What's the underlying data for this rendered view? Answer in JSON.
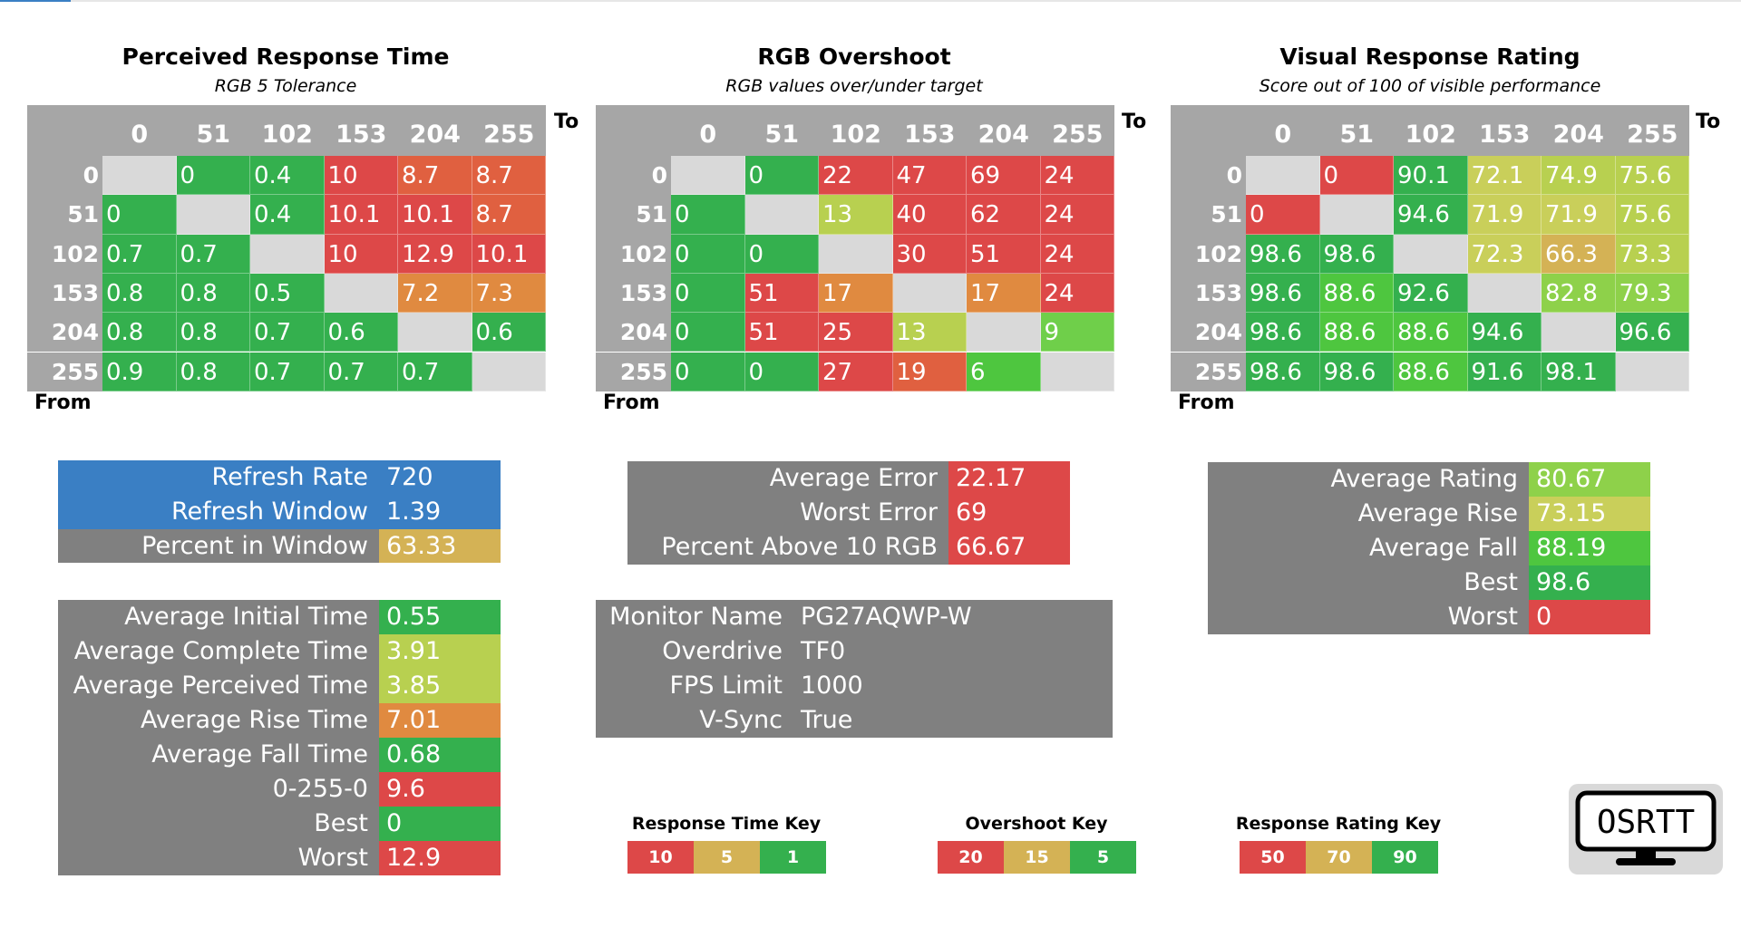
{
  "colors": {
    "header_gray": "#a6a6a6",
    "label_gray": "#808080",
    "blue_panel": "#3a7fc4",
    "empty_cell": "#d9d9d9",
    "green_dark": "#34b04e",
    "green_bright": "#4ec63f",
    "green_light": "#6fcf4a",
    "lime": "#8ed14a",
    "yellow_green": "#b8d050",
    "yellow": "#c9cf5a",
    "tan": "#d4b255",
    "orange": "#e08a40",
    "red_orange": "#e06040",
    "red": "#dd4848"
  },
  "chart_data": [
    {
      "type": "heatmap",
      "title": "Perceived Response Time",
      "subtitle": "RGB 5 Tolerance",
      "xlabel": "To",
      "ylabel": "From",
      "columns": [
        "0",
        "51",
        "102",
        "153",
        "204",
        "255"
      ],
      "rows": [
        "0",
        "51",
        "102",
        "153",
        "204",
        "255"
      ],
      "values": [
        [
          "",
          "0",
          "0.4",
          "10",
          "8.7",
          "8.7"
        ],
        [
          "0",
          "",
          "0.4",
          "10.1",
          "10.1",
          "8.7"
        ],
        [
          "0.7",
          "0.7",
          "",
          "10",
          "12.9",
          "10.1"
        ],
        [
          "0.8",
          "0.8",
          "0.5",
          "",
          "7.2",
          "7.3"
        ],
        [
          "0.8",
          "0.8",
          "0.7",
          "0.6",
          "",
          "0.6"
        ],
        [
          "0.9",
          "0.8",
          "0.7",
          "0.7",
          "0.7",
          ""
        ]
      ],
      "cell_colors": [
        [
          "empty",
          "green_dark",
          "green_dark",
          "red",
          "red_orange",
          "red_orange"
        ],
        [
          "green_dark",
          "empty",
          "green_dark",
          "red",
          "red",
          "red_orange"
        ],
        [
          "green_dark",
          "green_dark",
          "empty",
          "red",
          "red",
          "red"
        ],
        [
          "green_dark",
          "green_dark",
          "green_dark",
          "empty",
          "orange",
          "orange"
        ],
        [
          "green_dark",
          "green_dark",
          "green_dark",
          "green_dark",
          "empty",
          "green_dark"
        ],
        [
          "green_dark",
          "green_dark",
          "green_dark",
          "green_dark",
          "green_dark",
          "empty"
        ]
      ]
    },
    {
      "type": "heatmap",
      "title": "RGB Overshoot",
      "subtitle": "RGB values over/under target",
      "xlabel": "To",
      "ylabel": "From",
      "columns": [
        "0",
        "51",
        "102",
        "153",
        "204",
        "255"
      ],
      "rows": [
        "0",
        "51",
        "102",
        "153",
        "204",
        "255"
      ],
      "values": [
        [
          "",
          "0",
          "22",
          "47",
          "69",
          "24"
        ],
        [
          "0",
          "",
          "13",
          "40",
          "62",
          "24"
        ],
        [
          "0",
          "0",
          "",
          "30",
          "51",
          "24"
        ],
        [
          "0",
          "51",
          "17",
          "",
          "17",
          "24"
        ],
        [
          "0",
          "51",
          "25",
          "13",
          "",
          "9"
        ],
        [
          "0",
          "0",
          "27",
          "19",
          "6",
          ""
        ]
      ],
      "cell_colors": [
        [
          "empty",
          "green_dark",
          "red",
          "red",
          "red",
          "red"
        ],
        [
          "green_dark",
          "empty",
          "yellow_green",
          "red",
          "red",
          "red"
        ],
        [
          "green_dark",
          "green_dark",
          "empty",
          "red",
          "red",
          "red"
        ],
        [
          "green_dark",
          "red",
          "orange",
          "empty",
          "orange",
          "red"
        ],
        [
          "green_dark",
          "red",
          "red",
          "yellow_green",
          "empty",
          "green_light"
        ],
        [
          "green_dark",
          "green_dark",
          "red",
          "red_orange",
          "green_bright",
          "empty"
        ]
      ]
    },
    {
      "type": "heatmap",
      "title": "Visual Response Rating",
      "subtitle": "Score out of 100 of visible performance",
      "xlabel": "To",
      "ylabel": "From",
      "columns": [
        "0",
        "51",
        "102",
        "153",
        "204",
        "255"
      ],
      "rows": [
        "0",
        "51",
        "102",
        "153",
        "204",
        "255"
      ],
      "values": [
        [
          "",
          "0",
          "90.1",
          "72.1",
          "74.9",
          "75.6"
        ],
        [
          "0",
          "",
          "94.6",
          "71.9",
          "71.9",
          "75.6"
        ],
        [
          "98.6",
          "98.6",
          "",
          "72.3",
          "66.3",
          "73.3"
        ],
        [
          "98.6",
          "88.6",
          "92.6",
          "",
          "82.8",
          "79.3"
        ],
        [
          "98.6",
          "88.6",
          "88.6",
          "94.6",
          "",
          "96.6"
        ],
        [
          "98.6",
          "98.6",
          "88.6",
          "91.6",
          "98.1",
          ""
        ]
      ],
      "cell_colors": [
        [
          "empty",
          "red",
          "green_dark",
          "yellow",
          "yellow_green",
          "yellow_green"
        ],
        [
          "red",
          "empty",
          "green_dark",
          "yellow",
          "yellow",
          "yellow_green"
        ],
        [
          "green_dark",
          "green_dark",
          "empty",
          "yellow",
          "tan",
          "yellow_green"
        ],
        [
          "green_dark",
          "green_bright",
          "green_dark",
          "empty",
          "lime",
          "lime"
        ],
        [
          "green_dark",
          "green_bright",
          "green_bright",
          "green_dark",
          "empty",
          "green_dark"
        ],
        [
          "green_dark",
          "green_dark",
          "green_bright",
          "green_dark",
          "green_dark",
          "empty"
        ]
      ]
    }
  ],
  "refresh_panel": [
    {
      "label": "Refresh Rate",
      "value": "720",
      "label_bg": "blue_panel",
      "value_bg": "blue_panel"
    },
    {
      "label": "Refresh Window",
      "value": "1.39",
      "label_bg": "blue_panel",
      "value_bg": "blue_panel"
    },
    {
      "label": "Percent in Window",
      "value": "63.33",
      "label_bg": "label_gray",
      "value_bg": "tan"
    }
  ],
  "time_panel": [
    {
      "label": "Average Initial Time",
      "value": "0.55",
      "value_bg": "green_dark"
    },
    {
      "label": "Average Complete Time",
      "value": "3.91",
      "value_bg": "yellow_green"
    },
    {
      "label": "Average Perceived Time",
      "value": "3.85",
      "value_bg": "yellow_green"
    },
    {
      "label": "Average Rise Time",
      "value": "7.01",
      "value_bg": "orange"
    },
    {
      "label": "Average Fall Time",
      "value": "0.68",
      "value_bg": "green_dark"
    },
    {
      "label": "0-255-0",
      "value": "9.6",
      "value_bg": "red"
    },
    {
      "label": "Best",
      "value": "0",
      "value_bg": "green_dark"
    },
    {
      "label": "Worst",
      "value": "12.9",
      "value_bg": "red"
    }
  ],
  "error_panel": [
    {
      "label": "Average Error",
      "value": "22.17",
      "value_bg": "red"
    },
    {
      "label": "Worst Error",
      "value": "69",
      "value_bg": "red"
    },
    {
      "label": "Percent Above 10 RGB",
      "value": "66.67",
      "value_bg": "red"
    }
  ],
  "monitor_panel": [
    {
      "label": "Monitor Name",
      "value": "PG27AQWP-W"
    },
    {
      "label": "Overdrive",
      "value": "TF0"
    },
    {
      "label": "FPS Limit",
      "value": "1000"
    },
    {
      "label": "V-Sync",
      "value": "True"
    }
  ],
  "rating_panel": [
    {
      "label": "Average Rating",
      "value": "80.67",
      "value_bg": "lime"
    },
    {
      "label": "Average Rise",
      "value": "73.15",
      "value_bg": "yellow"
    },
    {
      "label": "Average Fall",
      "value": "88.19",
      "value_bg": "green_bright"
    },
    {
      "label": "Best",
      "value": "98.6",
      "value_bg": "green_dark"
    },
    {
      "label": "Worst",
      "value": "0",
      "value_bg": "red"
    }
  ],
  "keys": [
    {
      "title": "Response Time Key",
      "items": [
        {
          "value": "10",
          "color": "red"
        },
        {
          "value": "5",
          "color": "tan"
        },
        {
          "value": "1",
          "color": "green_dark"
        }
      ]
    },
    {
      "title": "Overshoot Key",
      "items": [
        {
          "value": "20",
          "color": "red"
        },
        {
          "value": "15",
          "color": "tan"
        },
        {
          "value": "5",
          "color": "green_dark"
        }
      ]
    },
    {
      "title": "Response Rating Key",
      "items": [
        {
          "value": "50",
          "color": "red"
        },
        {
          "value": "70",
          "color": "tan"
        },
        {
          "value": "90",
          "color": "green_dark"
        }
      ]
    }
  ],
  "logo": {
    "text": "OSRTT"
  }
}
